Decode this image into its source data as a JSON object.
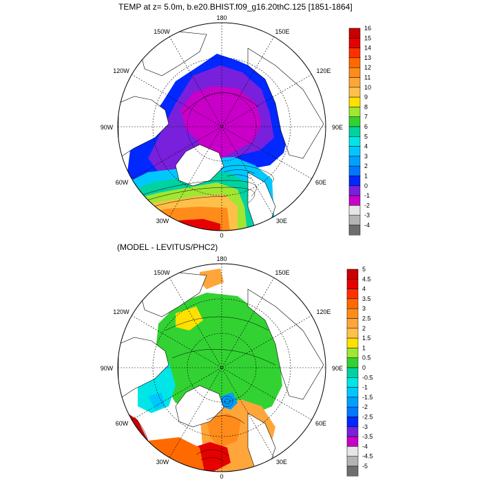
{
  "top": {
    "title": "TEMP at z=   5.0m, b.e20.BHIST.f09_g16.20thC.125 [1851-1864]",
    "lon_labels": [
      "180",
      "150E",
      "120E",
      "90E",
      "60E",
      "30E",
      "0",
      "30W",
      "60W",
      "90W",
      "120W",
      "150W"
    ],
    "colorbar": {
      "labels": [
        "16",
        "15",
        "14",
        "13",
        "12",
        "11",
        "10",
        "9",
        "8",
        "7",
        "6",
        "5",
        "4",
        "3",
        "2",
        "1",
        "0",
        "-1",
        "-2",
        "-3",
        "-4"
      ],
      "colors": [
        "#c80000",
        "#e60000",
        "#ff3000",
        "#ff6a00",
        "#ff8c1a",
        "#ffa63a",
        "#ffc04a",
        "#ffe000",
        "#a0e632",
        "#32d232",
        "#00d2a0",
        "#00e6e6",
        "#00c8ff",
        "#00a0ff",
        "#0078ff",
        "#0028ff",
        "#7820dc",
        "#c800c8",
        "#e6e6e6",
        "#b4b4b4",
        "#6e6e6e"
      ]
    }
  },
  "bottom": {
    "title": "(MODEL - LEVITUS/PHC2)",
    "lon_labels": [
      "180",
      "150E",
      "120E",
      "90E",
      "60E",
      "30E",
      "0",
      "30W",
      "60W",
      "90W",
      "120W",
      "150W"
    ],
    "colorbar": {
      "labels": [
        "5",
        "4.5",
        "4",
        "3.5",
        "3",
        "2.5",
        "2",
        "1.5",
        "1",
        "0.5",
        "0",
        "-0.5",
        "-1",
        "-1.5",
        "-2",
        "-2.5",
        "-3",
        "-3.5",
        "-4",
        "-4.5",
        "-5"
      ],
      "colors": [
        "#c80000",
        "#e60000",
        "#ff3000",
        "#ff6a00",
        "#ff8c1a",
        "#ffa63a",
        "#ffc04a",
        "#ffe000",
        "#a0e632",
        "#32d232",
        "#00d2a0",
        "#00e6e6",
        "#00c8ff",
        "#00a0ff",
        "#0078ff",
        "#0028ff",
        "#7820dc",
        "#c800c8",
        "#e6e6e6",
        "#b4b4b4",
        "#6e6e6e"
      ]
    }
  }
}
